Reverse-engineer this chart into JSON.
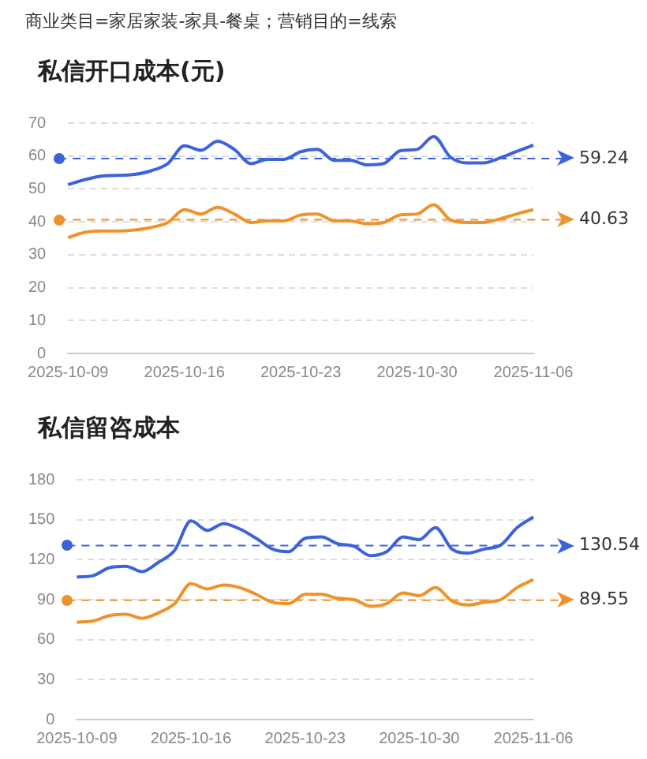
{
  "chart_data": [
    {
      "type": "line",
      "title": "私信开口成本(元)",
      "annotations": [
        "商业类目=家居家装-家具-餐桌；营销目的=线索"
      ],
      "categories": [
        "2025-10-09",
        null,
        null,
        null,
        null,
        null,
        null,
        "2025-10-16",
        null,
        null,
        null,
        null,
        null,
        null,
        "2025-10-23",
        null,
        null,
        null,
        null,
        null,
        null,
        "2025-10-30",
        null,
        null,
        null,
        null,
        null,
        null,
        "2025-11-06"
      ],
      "series": [
        {
          "color": "#3d63dc",
          "values": [
            51.3,
            52.8,
            53.9,
            54.1,
            54.4,
            55.5,
            57.7,
            63.1,
            61.7,
            64.5,
            62.0,
            57.7,
            59.0,
            59.0,
            61.3,
            62.0,
            58.7,
            58.7,
            57.3,
            57.7,
            61.6,
            62.0,
            65.9,
            59.7,
            57.9,
            57.9,
            59.4,
            61.4,
            63.3
          ]
        },
        {
          "color": "#f0922b",
          "values": [
            35.2,
            36.8,
            37.2,
            37.2,
            37.5,
            38.3,
            39.8,
            43.7,
            42.4,
            44.4,
            42.4,
            39.8,
            40.3,
            40.3,
            42.1,
            42.4,
            40.3,
            40.3,
            39.4,
            39.8,
            42.1,
            42.4,
            45.2,
            40.6,
            39.8,
            39.8,
            40.9,
            42.4,
            43.7
          ]
        }
      ],
      "ylim": [
        0,
        70
      ],
      "yticks": [
        0,
        10,
        20,
        30,
        40,
        50,
        60,
        70
      ],
      "grid": "y",
      "marker": "none",
      "line_style": "solid",
      "legend": false,
      "ref_lines": [
        {
          "axis": "y",
          "value": 59.24,
          "label": "59.24",
          "color": "#3d63dc",
          "line_style": "dashed"
        },
        {
          "axis": "y",
          "value": 40.63,
          "label": "40.63",
          "color": "#f0922b",
          "line_style": "dashed"
        }
      ]
    },
    {
      "type": "line",
      "title": "私信留咨成本",
      "categories": [
        "2025-10-09",
        null,
        null,
        null,
        null,
        null,
        null,
        "2025-10-16",
        null,
        null,
        null,
        null,
        null,
        null,
        "2025-10-23",
        null,
        null,
        null,
        null,
        null,
        null,
        "2025-10-30",
        null,
        null,
        null,
        null,
        null,
        null,
        "2025-11-06"
      ],
      "series": [
        {
          "color": "#3d63dc",
          "values": [
            107,
            108,
            114,
            115,
            111,
            118,
            127,
            149,
            142,
            147,
            143,
            136,
            128,
            126,
            136,
            137,
            132,
            130,
            123,
            126,
            137,
            135,
            144,
            128,
            125,
            128,
            131,
            144,
            152
          ]
        },
        {
          "color": "#f0922b",
          "values": [
            73,
            74,
            78,
            79,
            76,
            80,
            87,
            102,
            98,
            101,
            99,
            94,
            88,
            87,
            94,
            94,
            91,
            90,
            85,
            87,
            95,
            93,
            99,
            89,
            86,
            88,
            90,
            99,
            105
          ]
        }
      ],
      "ylim": [
        0,
        180
      ],
      "yticks": [
        0,
        30,
        60,
        90,
        120,
        150,
        180
      ],
      "grid": "y",
      "marker": "none",
      "line_style": "solid",
      "legend": false,
      "ref_lines": [
        {
          "axis": "y",
          "value": 130.54,
          "label": "130.54",
          "color": "#3d63dc",
          "line_style": "dashed"
        },
        {
          "axis": "y",
          "value": 89.55,
          "label": "89.55",
          "color": "#f0922b",
          "line_style": "dashed"
        }
      ]
    }
  ]
}
